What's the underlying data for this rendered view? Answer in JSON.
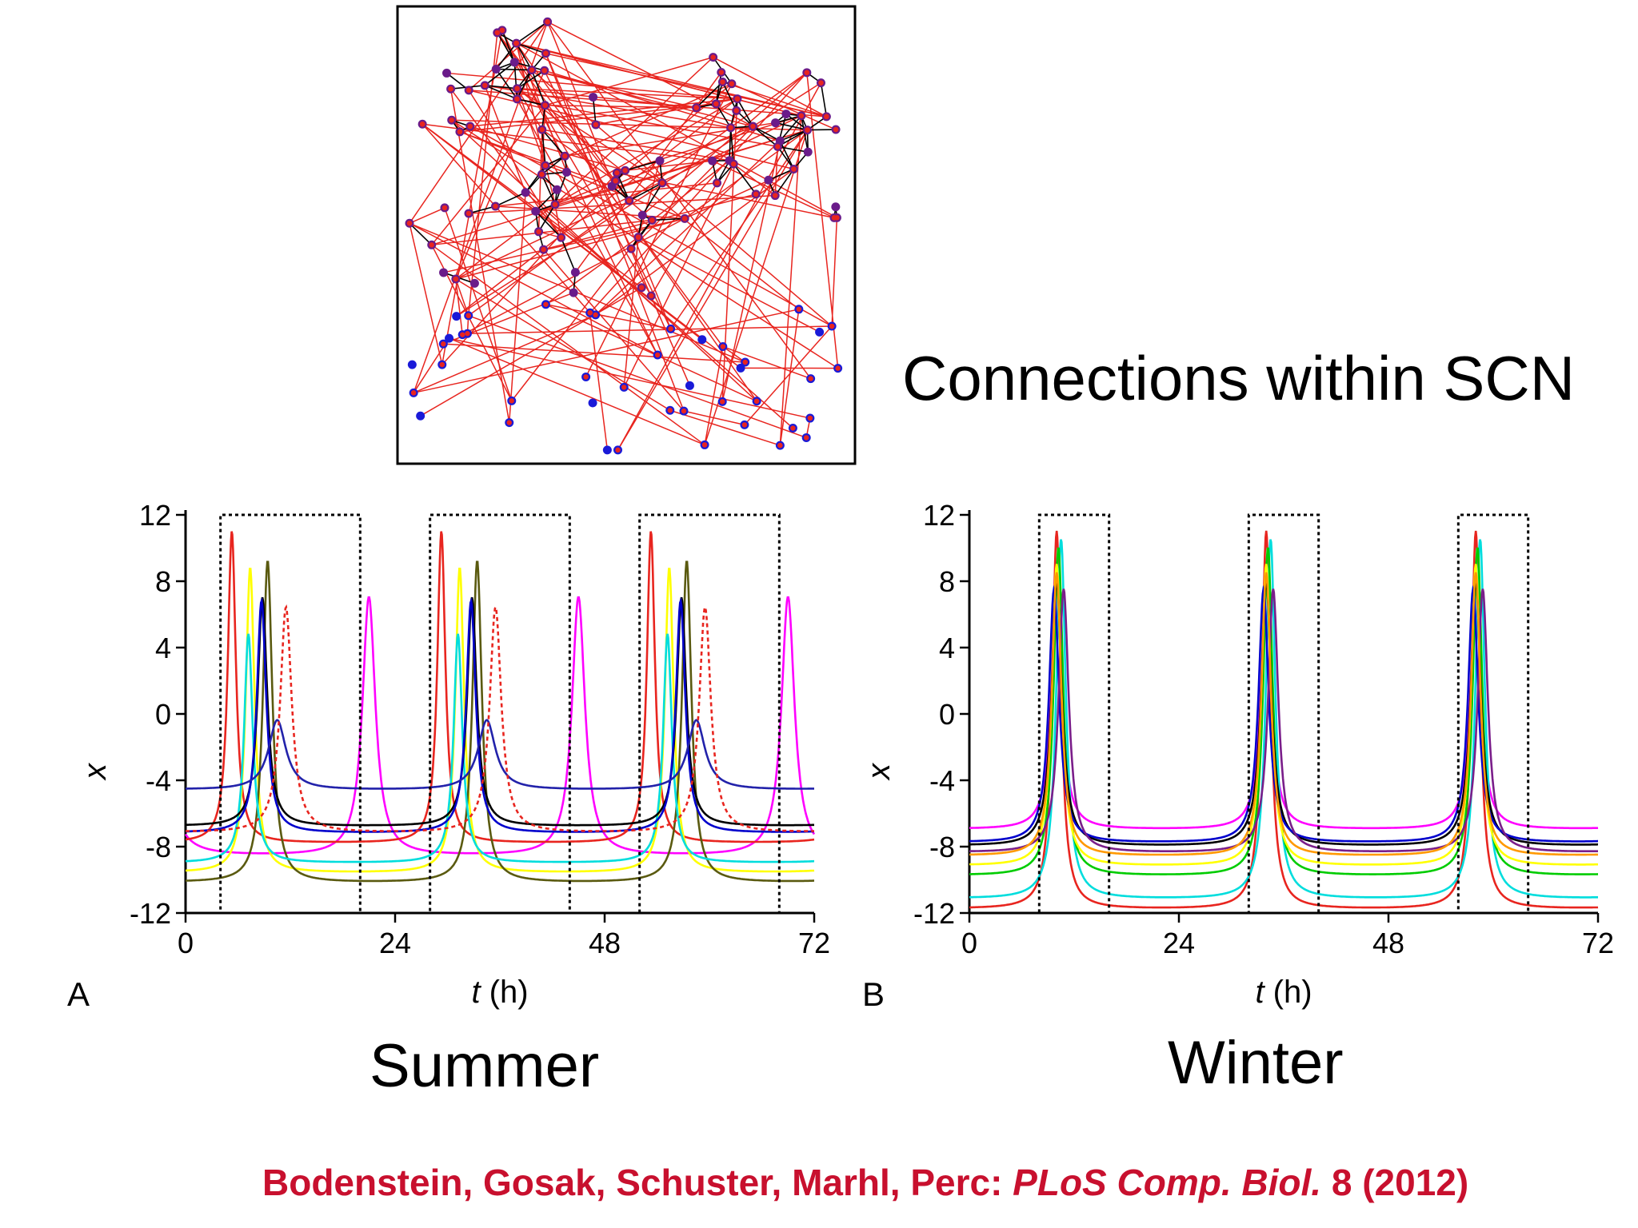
{
  "network": {
    "title": "Connections within SCN",
    "colors": {
      "local_edge": "#000000",
      "long_edge": "#e8251f",
      "node_connected": "#6a1b8a",
      "node_free": "#1a1ad8",
      "node_target": "#e8251f"
    }
  },
  "panels": {
    "a": {
      "letter": "A",
      "season": "Summer"
    },
    "b": {
      "letter": "B",
      "season": "Winter"
    }
  },
  "citation": {
    "authors": "Bodenstein, Gosak, Schuster, Marhl, Perc: ",
    "journal": "PLoS Comp. Biol.",
    "volume_year": " 8 (2012)"
  },
  "chart_data": [
    {
      "type": "line",
      "panel": "A",
      "xlabel_italic": "t",
      "xlabel_unit": " (h)",
      "ylabel": "x",
      "xlim": [
        0,
        72
      ],
      "ylim": [
        -12,
        12
      ],
      "xticks": [
        0,
        24,
        48,
        72
      ],
      "yticks": [
        12,
        8,
        4,
        0,
        -4,
        -8,
        -12
      ],
      "light_pulse": {
        "period": 24,
        "on_start": 4,
        "on_end": 20,
        "high": 12,
        "low": -12
      },
      "series": [
        {
          "color": "#ff00ff",
          "peak_time": 21,
          "peak_value": 7,
          "baseline": -8.6,
          "width": 0.9,
          "dashed": false
        },
        {
          "color": "#e8251f",
          "peak_time": 5.3,
          "peak_value": 11,
          "baseline": -7.8,
          "width": 0.55,
          "dashed": false
        },
        {
          "color": "#ffff00",
          "peak_time": 7.4,
          "peak_value": 8.8,
          "baseline": -9.6,
          "width": 0.6,
          "dashed": false
        },
        {
          "color": "#5a5a10",
          "peak_time": 9.4,
          "peak_value": 9.2,
          "baseline": -10.2,
          "width": 0.65,
          "dashed": false
        },
        {
          "color": "#00dddd",
          "peak_time": 7.2,
          "peak_value": 4.8,
          "baseline": -9.0,
          "width": 0.6,
          "dashed": false
        },
        {
          "color": "#000000",
          "peak_time": 8.8,
          "peak_value": 7.0,
          "baseline": -6.8,
          "width": 0.65,
          "dashed": false
        },
        {
          "color": "#0000cc",
          "peak_time": 8.7,
          "peak_value": 6.8,
          "baseline": -7.2,
          "width": 0.65,
          "dashed": false
        },
        {
          "color": "#2222aa",
          "peak_time": 10.5,
          "peak_value": -0.4,
          "baseline": -4.6,
          "width": 1.2,
          "dashed": false
        },
        {
          "color": "#e8251f",
          "peak_time": 11.5,
          "peak_value": 6.4,
          "baseline": -7.2,
          "width": 0.8,
          "dashed": true
        }
      ]
    },
    {
      "type": "line",
      "panel": "B",
      "xlabel_italic": "t",
      "xlabel_unit": " (h)",
      "ylabel": "x",
      "xlim": [
        0,
        72
      ],
      "ylim": [
        -12,
        12
      ],
      "xticks": [
        0,
        24,
        48,
        72
      ],
      "yticks": [
        12,
        8,
        4,
        0,
        -4,
        -8,
        -12
      ],
      "light_pulse": {
        "period": 24,
        "on_start": 8,
        "on_end": 16,
        "high": 12,
        "low": -12
      },
      "series": [
        {
          "color": "#ff00ff",
          "peak_time": 10,
          "peak_value": 8,
          "baseline": -7.0,
          "width": 0.7,
          "dashed": false
        },
        {
          "color": "#e8251f",
          "peak_time": 10,
          "peak_value": 11,
          "baseline": -11.8,
          "width": 0.6,
          "dashed": false
        },
        {
          "color": "#00dddd",
          "peak_time": 10.5,
          "peak_value": 10.5,
          "baseline": -11.2,
          "width": 0.65,
          "dashed": false
        },
        {
          "color": "#00cc00",
          "peak_time": 10.2,
          "peak_value": 10,
          "baseline": -9.8,
          "width": 0.65,
          "dashed": false
        },
        {
          "color": "#ffff00",
          "peak_time": 10,
          "peak_value": 9,
          "baseline": -9.2,
          "width": 0.65,
          "dashed": false
        },
        {
          "color": "#000000",
          "peak_time": 10,
          "peak_value": 8,
          "baseline": -8.0,
          "width": 0.7,
          "dashed": false
        },
        {
          "color": "#0000cc",
          "peak_time": 9.7,
          "peak_value": 7.5,
          "baseline": -7.8,
          "width": 0.7,
          "dashed": false
        },
        {
          "color": "#7a1e8a",
          "peak_time": 10.8,
          "peak_value": 7.5,
          "baseline": -8.4,
          "width": 0.7,
          "dashed": false
        },
        {
          "color": "#ff9900",
          "peak_time": 10,
          "peak_value": 8.5,
          "baseline": -8.6,
          "width": 0.65,
          "dashed": false
        }
      ]
    }
  ]
}
